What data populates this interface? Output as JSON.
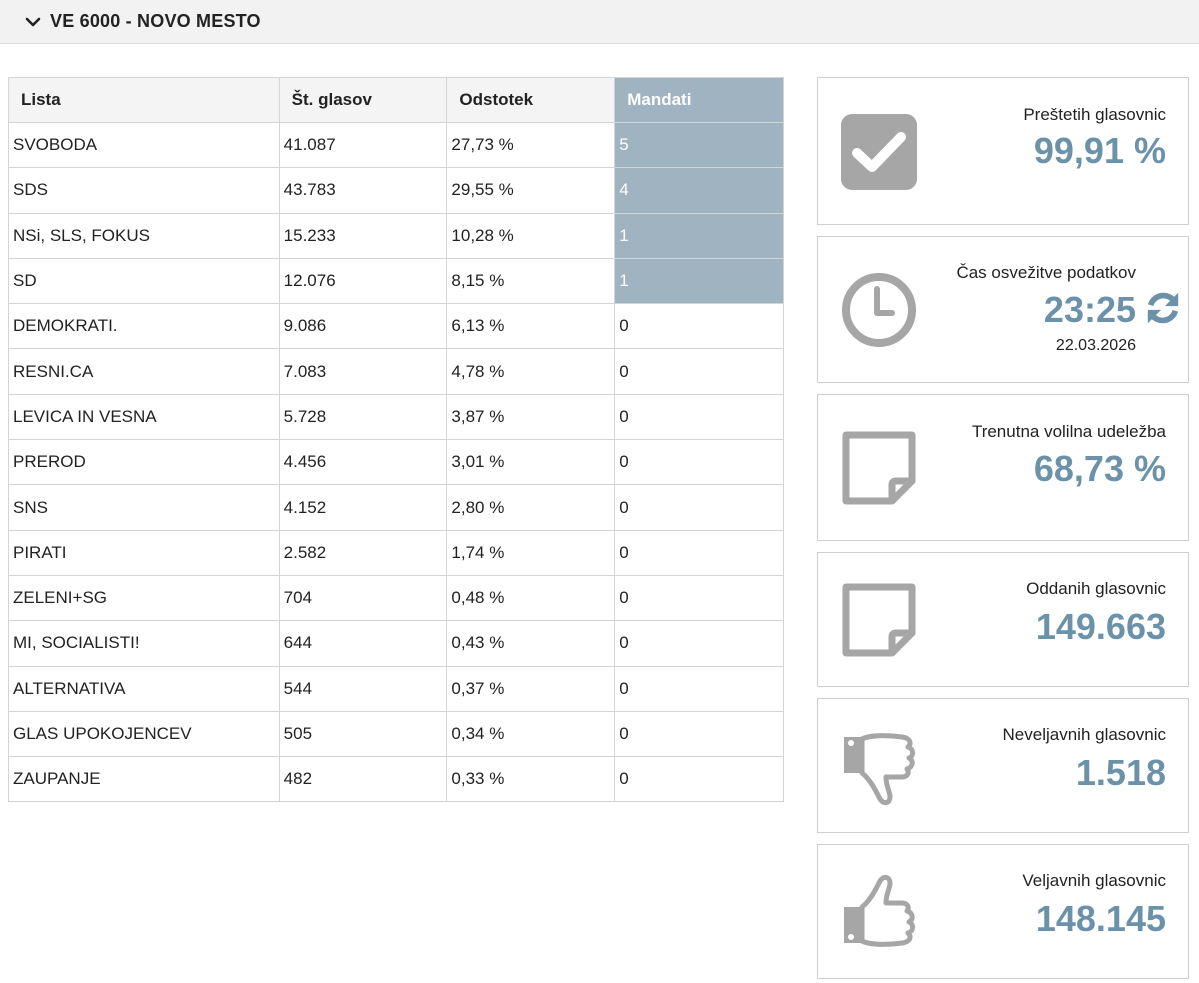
{
  "header": {
    "title": "VE 6000 - NOVO MESTO"
  },
  "table": {
    "columns": [
      "Lista",
      "Št. glasov",
      "Odstotek",
      "Mandati"
    ],
    "rows": [
      {
        "lista": "SVOBODA",
        "glasovi": "41.087",
        "odstotek": "27,73 %",
        "mandati": "5"
      },
      {
        "lista": "SDS",
        "glasovi": "43.783",
        "odstotek": "29,55 %",
        "mandati": "4"
      },
      {
        "lista": "NSi, SLS, FOKUS",
        "glasovi": "15.233",
        "odstotek": "10,28 %",
        "mandati": "1"
      },
      {
        "lista": "SD",
        "glasovi": "12.076",
        "odstotek": "8,15 %",
        "mandati": "1"
      },
      {
        "lista": "DEMOKRATI.",
        "glasovi": "9.086",
        "odstotek": "6,13 %",
        "mandati": "0"
      },
      {
        "lista": "RESNI.CA",
        "glasovi": "7.083",
        "odstotek": "4,78 %",
        "mandati": "0"
      },
      {
        "lista": "LEVICA IN VESNA",
        "glasovi": "5.728",
        "odstotek": "3,87 %",
        "mandati": "0"
      },
      {
        "lista": "PREROD",
        "glasovi": "4.456",
        "odstotek": "3,01 %",
        "mandati": "0"
      },
      {
        "lista": "SNS",
        "glasovi": "4.152",
        "odstotek": "2,80 %",
        "mandati": "0"
      },
      {
        "lista": "PIRATI",
        "glasovi": "2.582",
        "odstotek": "1,74 %",
        "mandati": "0"
      },
      {
        "lista": "ZELENI+SG",
        "glasovi": "704",
        "odstotek": "0,48 %",
        "mandati": "0"
      },
      {
        "lista": "MI, SOCIALISTI!",
        "glasovi": "644",
        "odstotek": "0,43 %",
        "mandati": "0"
      },
      {
        "lista": "ALTERNATIVA",
        "glasovi": "544",
        "odstotek": "0,37 %",
        "mandati": "0"
      },
      {
        "lista": "GLAS UPOKOJENCEV",
        "glasovi": "505",
        "odstotek": "0,34 %",
        "mandati": "0"
      },
      {
        "lista": "ZAUPANJE",
        "glasovi": "482",
        "odstotek": "0,33 %",
        "mandati": "0"
      }
    ]
  },
  "cards": {
    "counted": {
      "label": "Preštetih glasovnic",
      "value": "99,91 %",
      "icon": "checkbox-icon"
    },
    "refresh": {
      "label": "Čas osvežitve podatkov",
      "value": "23:25",
      "date": "22.03.2026",
      "icon": "clock-icon"
    },
    "turnout": {
      "label": "Trenutna volilna udeležba",
      "value": "68,73 %",
      "icon": "note-icon"
    },
    "cast": {
      "label": "Oddanih glasovnic",
      "value": "149.663",
      "icon": "note-icon"
    },
    "invalid": {
      "label": "Neveljavnih glasovnic",
      "value": "1.518",
      "icon": "thumbs-down-icon"
    },
    "valid": {
      "label": "Veljavnih glasovnic",
      "value": "148.145",
      "icon": "thumbs-up-icon"
    }
  },
  "colors": {
    "accent": "#6b92a9",
    "mandate_fill": "#9fb3c1",
    "icon_gray": "#a6a6a6"
  }
}
